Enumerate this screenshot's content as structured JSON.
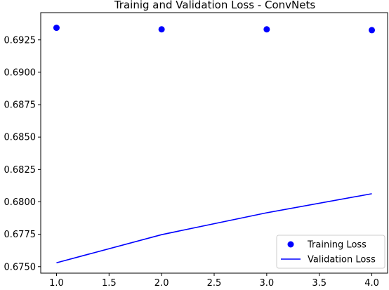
{
  "chart_data": {
    "type": "line",
    "title": "Trainig and Validation Loss - ConvNets",
    "xlabel": "",
    "ylabel": "",
    "xlim": [
      0.85,
      4.15
    ],
    "ylim": [
      0.6745,
      0.6946
    ],
    "x_ticks": [
      1.0,
      1.5,
      2.0,
      2.5,
      3.0,
      3.5,
      4.0
    ],
    "x_tick_labels": [
      "1.0",
      "1.5",
      "2.0",
      "2.5",
      "3.0",
      "3.5",
      "4.0"
    ],
    "y_ticks": [
      0.675,
      0.6775,
      0.68,
      0.6825,
      0.685,
      0.6875,
      0.69,
      0.6925
    ],
    "y_tick_labels": [
      "0.6750",
      "0.6775",
      "0.6800",
      "0.6825",
      "0.6850",
      "0.6875",
      "0.6900",
      "0.6925"
    ],
    "grid": false,
    "legend_position": "lower-right",
    "series": [
      {
        "name": "Training Loss",
        "style": "points",
        "color": "#0000ff",
        "x": [
          1.0,
          2.0,
          3.0,
          4.0
        ],
        "values": [
          0.69343,
          0.69331,
          0.69331,
          0.69325
        ]
      },
      {
        "name": "Validation Loss",
        "style": "line",
        "color": "#0000ff",
        "x": [
          1.0,
          2.0,
          3.0,
          4.0
        ],
        "values": [
          0.6753,
          0.67747,
          0.67916,
          0.68063
        ]
      }
    ]
  }
}
